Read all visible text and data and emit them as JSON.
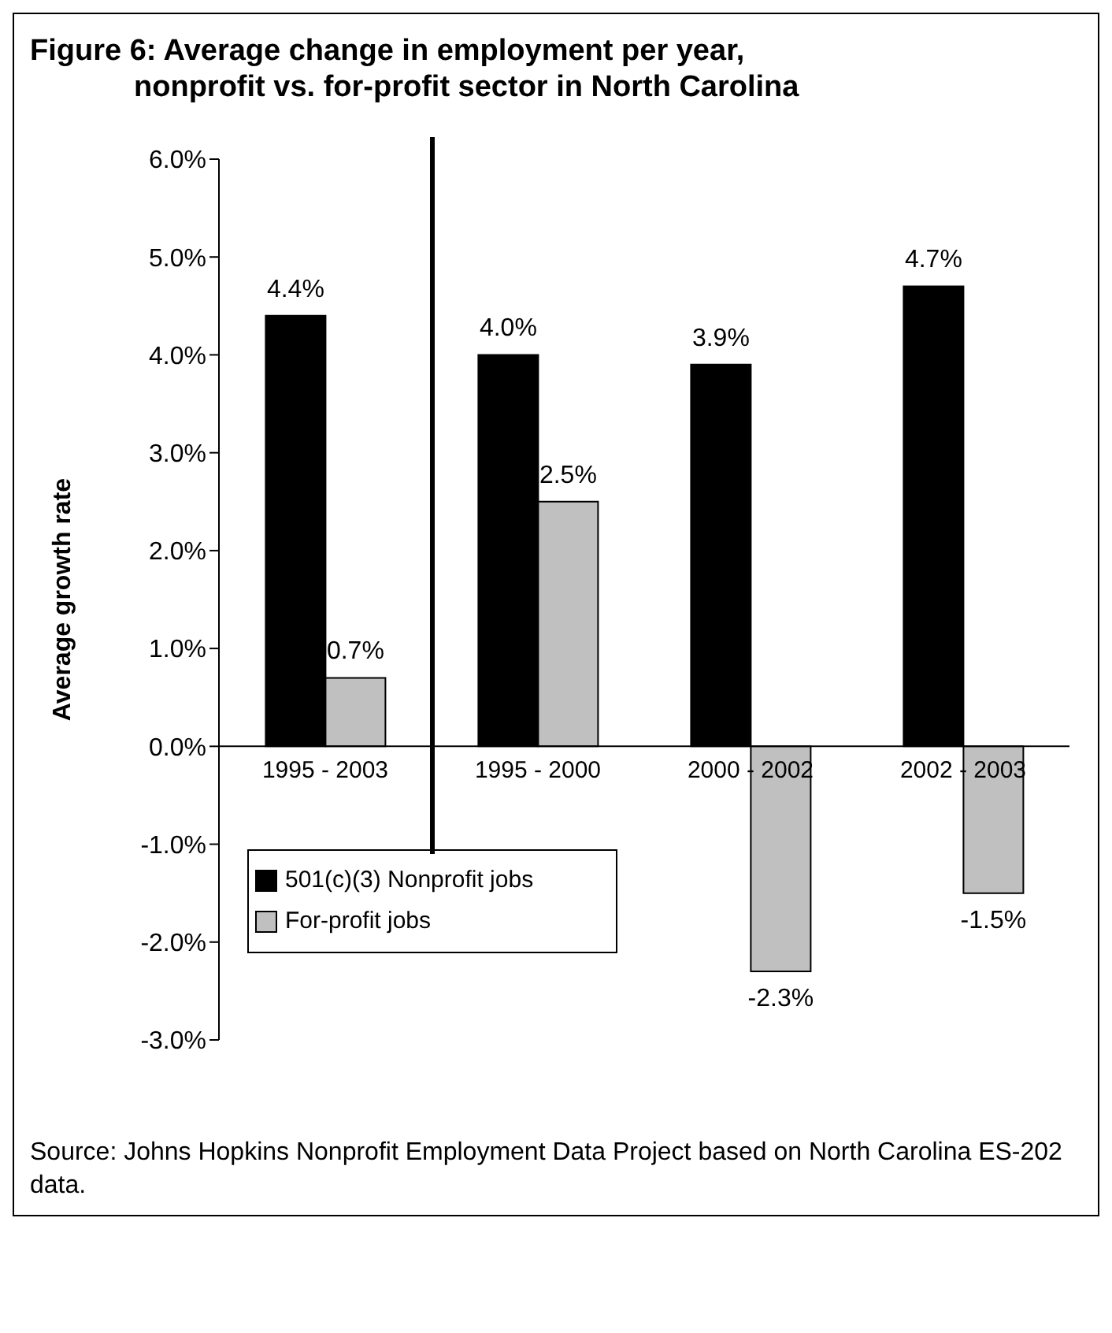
{
  "chart_data": {
    "type": "bar",
    "title": "Figure 6: Average change in employment per year,\n nonprofit vs. for-profit sector in North Carolina",
    "ylabel": "Average growth rate",
    "categories": [
      "1995 - 2003",
      "1995 - 2000",
      "2000 - 2002",
      "2002 - 2003"
    ],
    "series": [
      {
        "name": "501(c)(3) Nonprofit jobs",
        "color": "#000000",
        "values": [
          4.4,
          4.0,
          3.9,
          4.7
        ],
        "value_labels": [
          "4.4%",
          "4.0%",
          "3.9%",
          "4.7%"
        ]
      },
      {
        "name": "For-profit jobs",
        "color": "#c0c0c0",
        "values": [
          0.7,
          2.5,
          -2.3,
          -1.5
        ],
        "value_labels": [
          "0.7%",
          "2.5%",
          "-2.3%",
          "-1.5%"
        ]
      }
    ],
    "ylim": [
      -3,
      6
    ],
    "yticks": [
      {
        "value": -3,
        "label": "-3.0%"
      },
      {
        "value": -2,
        "label": "-2.0%"
      },
      {
        "value": -1,
        "label": "-1.0%"
      },
      {
        "value": 0,
        "label": "0.0%"
      },
      {
        "value": 1,
        "label": "1.0%"
      },
      {
        "value": 2,
        "label": "2.0%"
      },
      {
        "value": 3,
        "label": "3.0%"
      },
      {
        "value": 4,
        "label": "4.0%"
      },
      {
        "value": 5,
        "label": "5.0%"
      },
      {
        "value": 6,
        "label": "6.0%"
      }
    ],
    "legend": "bottom left",
    "annotations": [
      "Source: Johns Hopkins Nonprofit Employment Data Project based on North Carolina ES-202 data."
    ]
  }
}
